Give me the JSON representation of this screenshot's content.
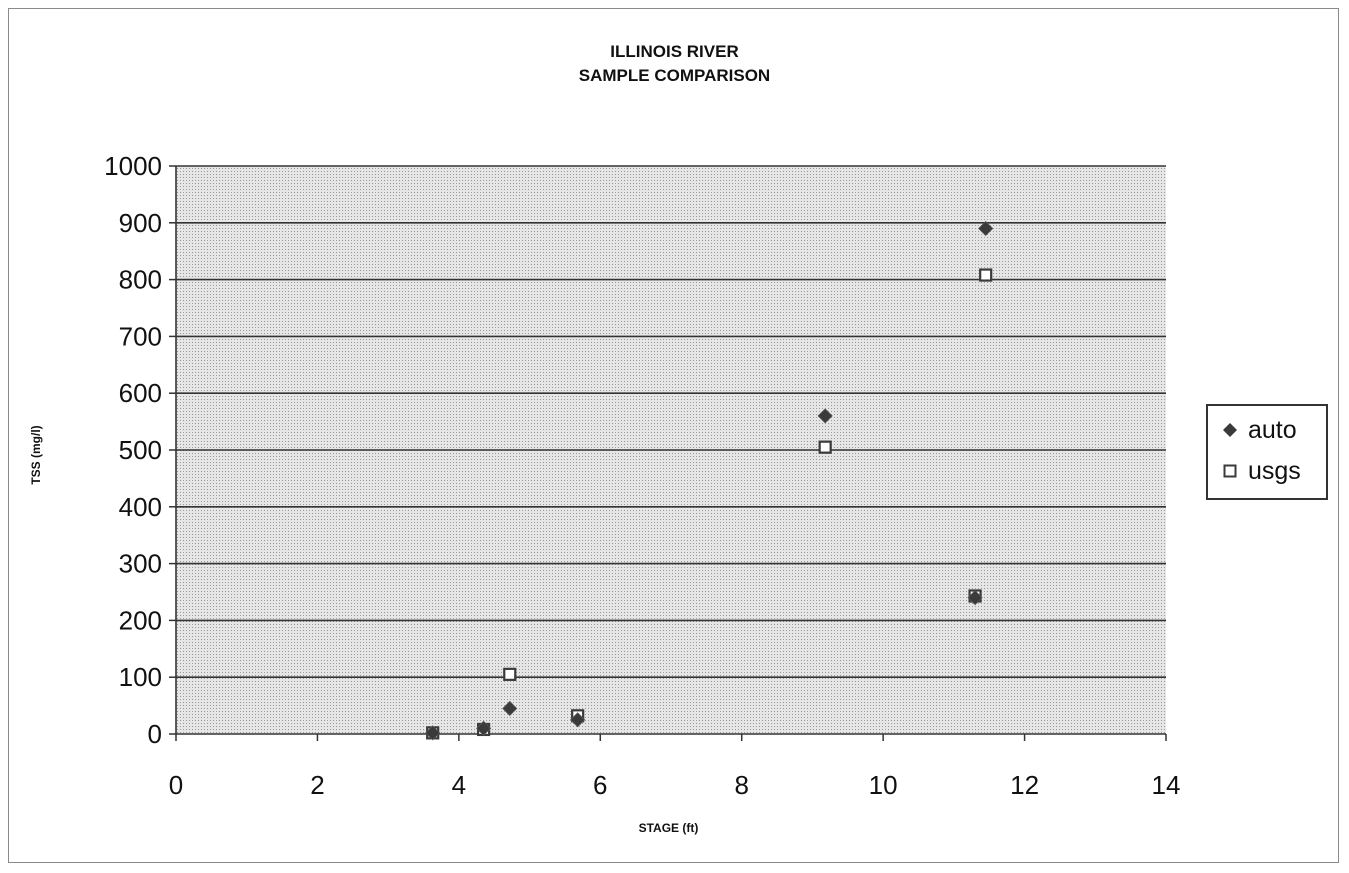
{
  "chart_data": {
    "type": "scatter",
    "title": "ILLINOIS RIVER",
    "subtitle": "SAMPLE COMPARISON",
    "xlabel": "STAGE (ft)",
    "ylabel": "TSS (mg/l)",
    "xlim": [
      0,
      14
    ],
    "ylim": [
      0,
      1000
    ],
    "xticks": [
      "0",
      "2",
      "4",
      "6",
      "8",
      "10",
      "12",
      "14"
    ],
    "yticks": [
      "0",
      "100",
      "200",
      "300",
      "400",
      "500",
      "600",
      "700",
      "800",
      "900",
      "1000"
    ],
    "grid": "horizontal",
    "legend_position": "right",
    "series": [
      {
        "name": "auto",
        "marker": "diamond",
        "color": "#3a3a3a",
        "points": [
          {
            "x": 3.63,
            "y": 2
          },
          {
            "x": 4.35,
            "y": 10
          },
          {
            "x": 4.72,
            "y": 45
          },
          {
            "x": 5.68,
            "y": 25
          },
          {
            "x": 9.18,
            "y": 560
          },
          {
            "x": 11.3,
            "y": 240
          },
          {
            "x": 11.45,
            "y": 890
          }
        ]
      },
      {
        "name": "usgs",
        "marker": "square",
        "color": "#3a3a3a",
        "points": [
          {
            "x": 3.63,
            "y": 2
          },
          {
            "x": 4.35,
            "y": 8
          },
          {
            "x": 4.72,
            "y": 105
          },
          {
            "x": 5.68,
            "y": 32
          },
          {
            "x": 9.18,
            "y": 505
          },
          {
            "x": 11.3,
            "y": 243
          },
          {
            "x": 11.45,
            "y": 808
          }
        ]
      }
    ]
  },
  "colors": {
    "plot_background": "#d4d4d4",
    "gridline": "#333333",
    "marker": "#3a3a3a"
  }
}
